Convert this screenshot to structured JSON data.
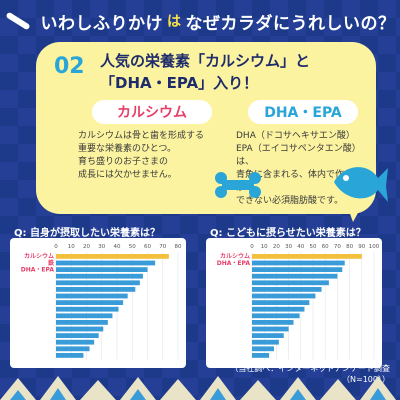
{
  "header": {
    "part1": "いわしふりかけ",
    "part2": "は",
    "part3": "なぜカラダにうれしいの？"
  },
  "yellow_box": {
    "number": "02",
    "headline_line1": "人気の栄養素「カルシウム」と",
    "headline_line2": "「DHA・EPA」入り！",
    "left": {
      "title": "カルシウム",
      "lines": [
        "カルシウムは骨と歯を形成する",
        "重要な栄養素のひとつ。",
        "育ち盛りのお子さまの",
        "成長には欠かせません。"
      ]
    },
    "right": {
      "title": "DHA・EPA",
      "lines": [
        "DHA（ドコサヘキサエン酸）",
        "EPA（エイコサペンタエン酸）は、",
        "青魚に含まれる、体内で作ることが",
        "できない必須脂肪酸です。"
      ]
    }
  },
  "charts": [
    {
      "question": "Q:  自身が摂取したい栄養素は？",
      "chart_data": {
        "type": "bar",
        "orientation": "horizontal",
        "ticks": [
          "0",
          "10",
          "20",
          "30",
          "40",
          "50",
          "60",
          "70",
          "80"
        ],
        "xlim": [
          0,
          80
        ],
        "categories": [
          "カルシウム",
          "鉄",
          "DHA・EPA",
          "",
          "",
          "",
          "",
          "",
          "",
          "",
          "",
          "",
          "",
          "",
          "",
          ""
        ],
        "values": [
          74,
          65,
          60,
          57,
          55,
          52,
          47,
          44,
          41,
          37,
          34,
          31,
          28,
          25,
          22,
          18
        ],
        "highlight_colors": [
          "#f3c03b",
          "#3a9bd9"
        ]
      }
    },
    {
      "question": "Q:  こどもに摂らせたい栄養素は？",
      "chart_data": {
        "type": "bar",
        "orientation": "horizontal",
        "ticks": [
          "0",
          "10",
          "20",
          "30",
          "40",
          "50",
          "60",
          "70",
          "80",
          "90",
          "100"
        ],
        "xlim": [
          0,
          100
        ],
        "categories": [
          "カルシウム",
          "DHA・EPA",
          "",
          "",
          "",
          "",
          "",
          "",
          "",
          "",
          "",
          "",
          "",
          "",
          "",
          ""
        ],
        "values": [
          90,
          76,
          74,
          70,
          63,
          57,
          52,
          47,
          43,
          39,
          34,
          30,
          26,
          22,
          18,
          14
        ],
        "highlight_colors": [
          "#f3c03b",
          "#3a9bd9"
        ]
      }
    }
  ],
  "footer": "（当社調べ：インターネットアンケート調査　（N=100））"
}
